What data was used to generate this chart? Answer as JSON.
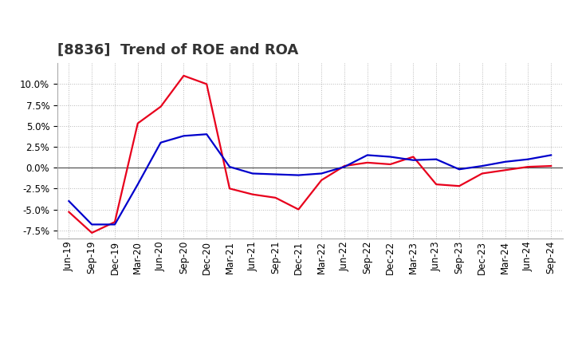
{
  "title": "[8836]  Trend of ROE and ROA",
  "labels": [
    "Jun-19",
    "Sep-19",
    "Dec-19",
    "Mar-20",
    "Jun-20",
    "Sep-20",
    "Dec-20",
    "Mar-21",
    "Jun-21",
    "Sep-21",
    "Dec-21",
    "Mar-22",
    "Jun-22",
    "Sep-22",
    "Dec-22",
    "Mar-23",
    "Jun-23",
    "Sep-23",
    "Dec-23",
    "Mar-24",
    "Jun-24",
    "Sep-24"
  ],
  "ROE": [
    -5.3,
    -7.8,
    -6.5,
    5.3,
    7.3,
    11.0,
    10.0,
    -2.5,
    -3.2,
    -3.6,
    -5.0,
    -1.5,
    0.2,
    0.6,
    0.4,
    1.3,
    -2.0,
    -2.2,
    -0.7,
    -0.3,
    0.1,
    0.2
  ],
  "ROA": [
    -4.0,
    -6.8,
    -6.8,
    -2.0,
    3.0,
    3.8,
    4.0,
    0.1,
    -0.7,
    -0.8,
    -0.9,
    -0.7,
    0.1,
    1.5,
    1.3,
    0.9,
    1.0,
    -0.2,
    0.2,
    0.7,
    1.0,
    1.5
  ],
  "ROE_color": "#e8001c",
  "ROA_color": "#0000cc",
  "background_color": "#ffffff",
  "plot_bg_color": "#ffffff",
  "grid_color": "#999999",
  "ylim": [
    -8.5,
    12.5
  ],
  "yticks": [
    -7.5,
    -5.0,
    -2.5,
    0.0,
    2.5,
    5.0,
    7.5,
    10.0
  ],
  "title_fontsize": 13,
  "axis_fontsize": 8.5,
  "legend_fontsize": 10
}
